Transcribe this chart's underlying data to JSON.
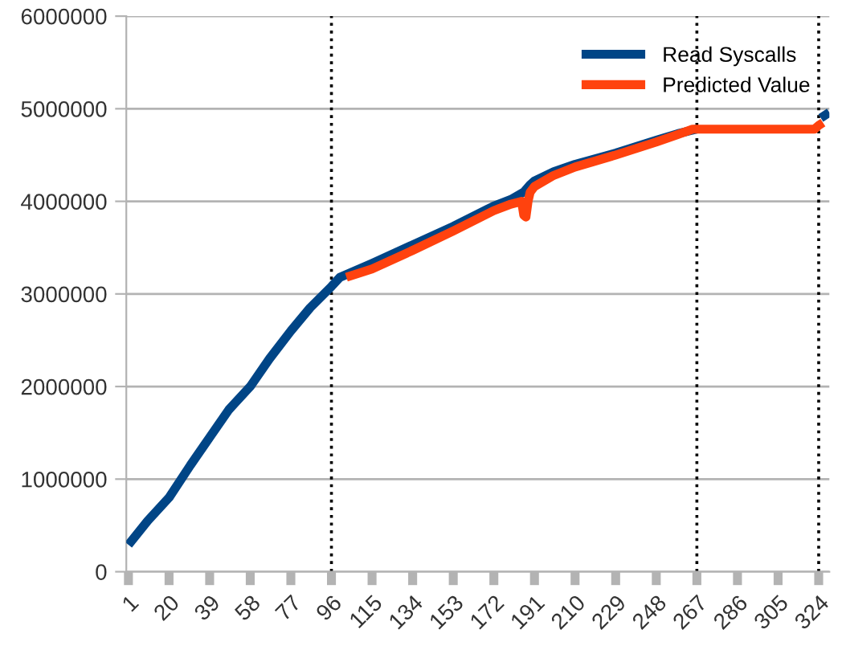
{
  "chart_data": {
    "type": "line",
    "xlim": [
      0,
      329
    ],
    "xticks": [
      1,
      20,
      39,
      58,
      77,
      96,
      115,
      134,
      153,
      172,
      191,
      210,
      229,
      248,
      267,
      286,
      305,
      324
    ],
    "ylim": [
      0,
      6000000
    ],
    "yticks": [
      0,
      1000000,
      2000000,
      3000000,
      4000000,
      5000000,
      6000000
    ],
    "grid": "y",
    "legend": "top right",
    "marker": "none",
    "line_style": "solid",
    "series": [
      {
        "name": "Read Syscalls",
        "color": "#004586",
        "x": [
          1,
          10,
          20,
          30,
          39,
          48,
          58,
          67,
          77,
          86,
          96,
          100,
          105,
          115,
          134,
          153,
          172,
          180,
          186,
          189,
          191,
          200,
          210,
          229,
          248,
          258,
          267,
          270,
          318,
          325,
          329
        ],
        "values": [
          290000,
          550000,
          800000,
          1150000,
          1450000,
          1750000,
          2000000,
          2300000,
          2600000,
          2850000,
          3080000,
          3180000,
          3230000,
          3330000,
          3530000,
          3730000,
          3950000,
          4020000,
          4100000,
          4180000,
          4220000,
          4320000,
          4400000,
          4520000,
          4660000,
          4730000,
          4780000,
          null,
          null,
          4900000,
          4960000
        ]
      },
      {
        "name": "Predicted Value",
        "color": "#ff420e",
        "x": [
          103,
          115,
          134,
          153,
          172,
          180,
          185,
          186,
          187,
          188,
          189,
          191,
          200,
          210,
          229,
          248,
          258,
          265,
          322,
          324,
          326
        ],
        "values": [
          3180000,
          3270000,
          3470000,
          3680000,
          3900000,
          3970000,
          4000000,
          3850000,
          3830000,
          4000000,
          4100000,
          4160000,
          4280000,
          4370000,
          4500000,
          4640000,
          4720000,
          4780000,
          4780000,
          4820000,
          4850000
        ]
      }
    ],
    "ref_lines": [
      {
        "axis": "x",
        "value": 96,
        "line_style": "dotted",
        "color": "#000000"
      },
      {
        "axis": "x",
        "value": 267,
        "line_style": "dotted",
        "color": "#000000"
      },
      {
        "axis": "x",
        "value": 324,
        "line_style": "dotted",
        "color": "#000000"
      }
    ]
  }
}
